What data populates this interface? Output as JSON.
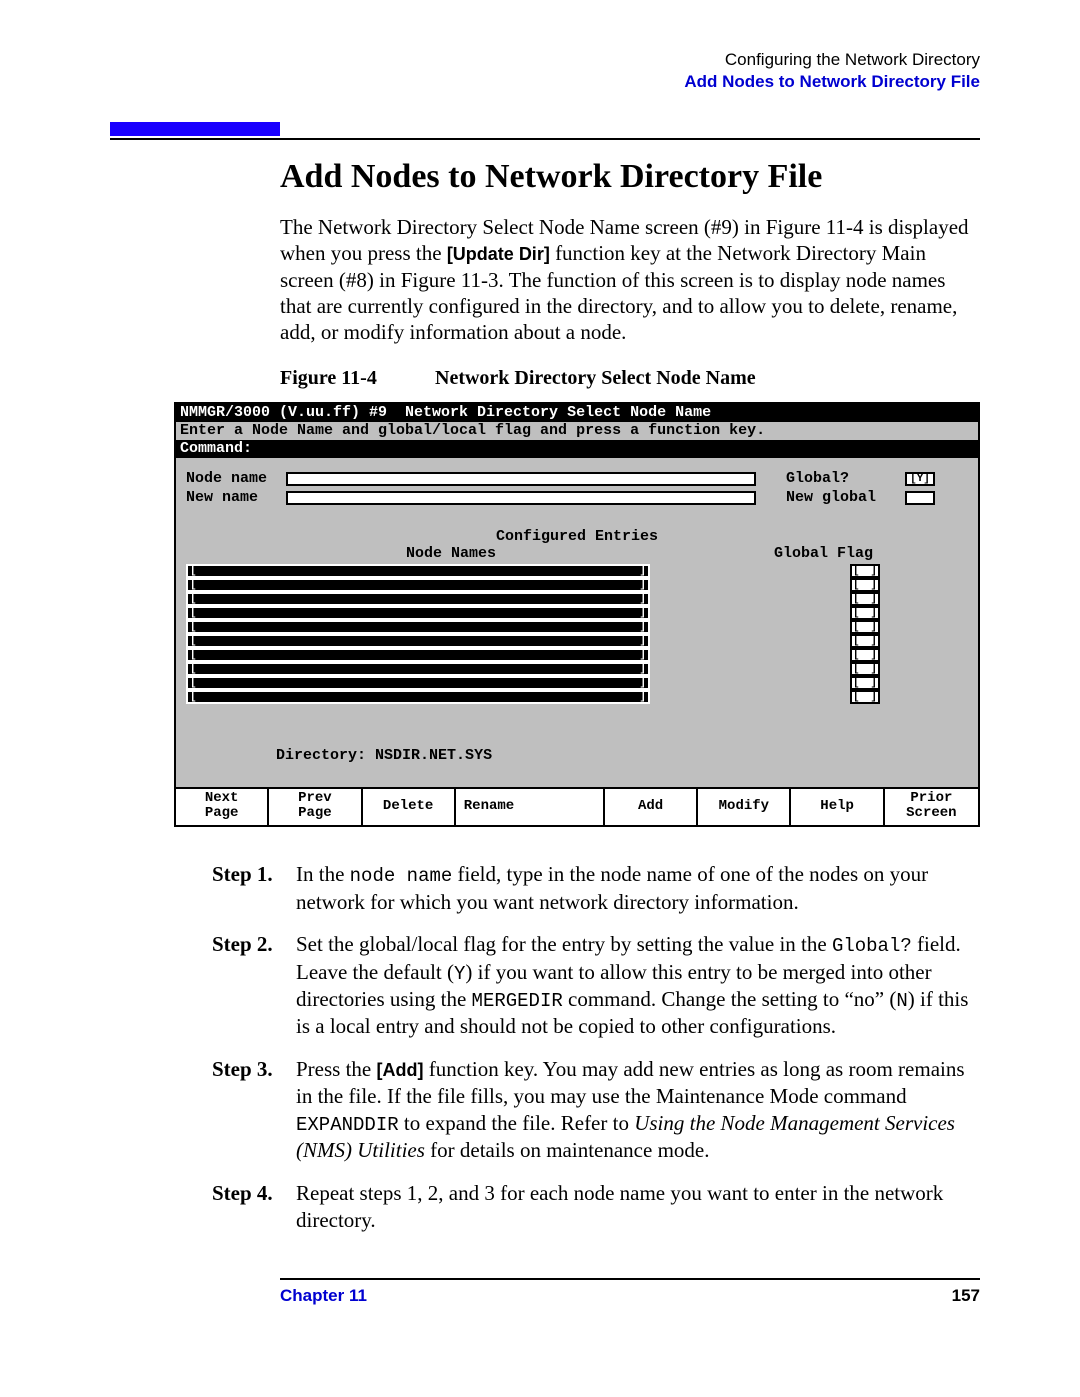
{
  "header": {
    "chapter_path": "Configuring the Network Directory",
    "section_path": "Add Nodes to Network Directory File"
  },
  "title": "Add Nodes to Network Directory File",
  "intro": {
    "pre": "The Network Directory Select Node Name screen (#9) in Figure 11-4 is displayed when you press the ",
    "key": "[Update Dir]",
    "post": " function key at the Network Directory Main screen (#8) in Figure 11-3. The function of this screen is to display node names that are currently configured in the directory, and to allow you to delete, rename, add, or modify information about a node."
  },
  "figure": {
    "label": "Figure 11-4",
    "title": "Network Directory Select Node Name"
  },
  "terminal": {
    "titlebar": "NMMGR/3000 (V.uu.ff) #9  Network Directory Select Node Name",
    "prompt": "Enter a Node Name and global/local flag and press a function key.",
    "command_label": "Command:",
    "node_name_label": "Node name",
    "new_name_label": "New name",
    "global_label": "Global?",
    "global_value": "[Y]",
    "new_global_label": "New global",
    "entries_header": "Configured Entries",
    "col_names": "Node Names",
    "col_flag": "Global Flag",
    "row_count": 10,
    "directory_label": "Directory:",
    "directory_value": "NSDIR.NET.SYS",
    "fkeys": [
      {
        "l1": "Next",
        "l2": "Page"
      },
      {
        "l1": "Prev",
        "l2": "Page"
      },
      {
        "l1": "Delete",
        "l2": ""
      },
      {
        "l1": "Rename",
        "l2": ""
      },
      {
        "l1": "Add",
        "l2": ""
      },
      {
        "l1": "Modify",
        "l2": ""
      },
      {
        "l1": "Help",
        "l2": ""
      },
      {
        "l1": "Prior",
        "l2": "Screen"
      }
    ]
  },
  "steps": [
    {
      "label": "Step 1.",
      "parts": [
        {
          "t": "text",
          "v": "In the "
        },
        {
          "t": "mono",
          "v": "node name"
        },
        {
          "t": "text",
          "v": " field, type in the node name of one of the nodes on your network for which you want network directory information."
        }
      ]
    },
    {
      "label": "Step 2.",
      "parts": [
        {
          "t": "text",
          "v": "Set the global/local flag for the entry by setting the value in the "
        },
        {
          "t": "mono",
          "v": "Global?"
        },
        {
          "t": "text",
          "v": " field. Leave the default ("
        },
        {
          "t": "mono",
          "v": "Y"
        },
        {
          "t": "text",
          "v": ") if you want to allow this entry to be merged into other directories using the "
        },
        {
          "t": "mono",
          "v": "MERGEDIR"
        },
        {
          "t": "text",
          "v": " command. Change the setting to “no” ("
        },
        {
          "t": "mono",
          "v": "N"
        },
        {
          "t": "text",
          "v": ") if this is a local entry and should not be copied to other configurations."
        }
      ]
    },
    {
      "label": "Step 3.",
      "parts": [
        {
          "t": "text",
          "v": "Press the "
        },
        {
          "t": "boldsans",
          "v": "[Add]"
        },
        {
          "t": "text",
          "v": " function key. You may add new entries as long as room remains in the file. If the file fills, you may use the Maintenance Mode command "
        },
        {
          "t": "mono",
          "v": "EXPANDDIR"
        },
        {
          "t": "text",
          "v": " to expand the file. Refer to "
        },
        {
          "t": "italic",
          "v": "Using the Node Management Services (NMS) Utilities"
        },
        {
          "t": "text",
          "v": " for details on maintenance mode."
        }
      ]
    },
    {
      "label": "Step 4.",
      "parts": [
        {
          "t": "text",
          "v": "Repeat steps 1, 2, and 3 for each node name you want to enter in the network directory."
        }
      ]
    }
  ],
  "footer": {
    "chapter": "Chapter 11",
    "page": "157"
  }
}
